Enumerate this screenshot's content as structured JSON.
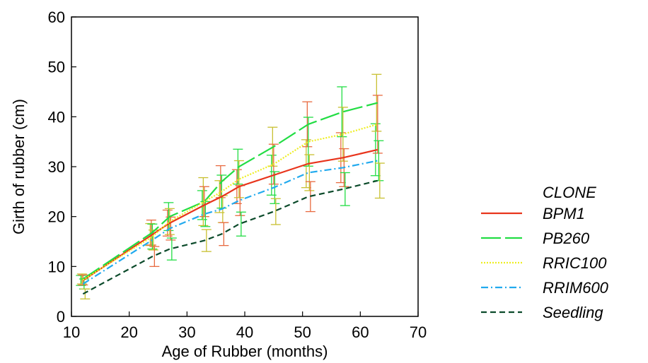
{
  "chart_data": {
    "type": "line",
    "title": "",
    "xlabel": "Age of Rubber (months)",
    "ylabel": "Girth of rubber (cm)",
    "xlim": [
      10,
      70
    ],
    "ylim": [
      0,
      60
    ],
    "xticks": [
      10,
      20,
      30,
      40,
      50,
      60,
      70
    ],
    "yticks": [
      0,
      10,
      20,
      30,
      40,
      50,
      60
    ],
    "grid": false,
    "error_bars": true,
    "legend": {
      "title": "CLONE",
      "placement": "right",
      "entries": [
        "BPM1",
        "PB260",
        "RRIC100",
        "RRIM600",
        "Seedling"
      ]
    },
    "series": [
      {
        "name": "BPM1",
        "color": "#e8341c",
        "style": "solid",
        "x": [
          12,
          24,
          27,
          33,
          36,
          39,
          45,
          51,
          57,
          63
        ],
        "y": [
          7.2,
          16.4,
          18.7,
          22.3,
          24.0,
          26.0,
          28.3,
          30.6,
          31.8,
          33.4
        ],
        "err": [
          1.0,
          2.2,
          2.6,
          2.9,
          3.2,
          3.4,
          4.0,
          4.8,
          5.0,
          5.2
        ]
      },
      {
        "name": "PB260",
        "color": "#22dd44",
        "style": "long-dash",
        "x": [
          12,
          24,
          27,
          33,
          36,
          39,
          45,
          51,
          57,
          63
        ],
        "y": [
          7.5,
          16.8,
          20.0,
          23.0,
          27.0,
          30.0,
          34.0,
          38.5,
          41.0,
          42.8
        ],
        "err": [
          1.0,
          2.5,
          2.8,
          4.8,
          3.2,
          3.5,
          3.9,
          4.5,
          5.0,
          5.7
        ]
      },
      {
        "name": "RRIC100",
        "color": "#eeee22",
        "style": "dotted",
        "x": [
          12,
          24,
          27,
          33,
          36,
          39,
          45,
          51,
          57,
          63
        ],
        "y": [
          7.3,
          16.0,
          19.0,
          23.0,
          25.0,
          27.5,
          30.5,
          35.0,
          36.5,
          38.5
        ],
        "err": [
          1.0,
          2.5,
          2.6,
          3.0,
          3.3,
          3.7,
          4.0,
          4.9,
          5.4,
          5.8
        ]
      },
      {
        "name": "RRIM600",
        "color": "#22aaee",
        "style": "dash-dot",
        "x": [
          12,
          24,
          27,
          33,
          36,
          39,
          45,
          51,
          57,
          63
        ],
        "y": [
          6.5,
          15.3,
          17.6,
          20.5,
          21.5,
          23.2,
          25.8,
          28.8,
          29.8,
          31.2
        ],
        "err": [
          1.0,
          2.0,
          2.3,
          2.5,
          2.7,
          3.0,
          3.2,
          3.6,
          3.8,
          4.0
        ]
      },
      {
        "name": "Seedling",
        "color": "#0b4a2a",
        "style": "dashed",
        "x": [
          12,
          24,
          27,
          33,
          36,
          39,
          45,
          51,
          57,
          63
        ],
        "y": [
          4.5,
          12.0,
          13.5,
          15.2,
          16.5,
          18.5,
          21.0,
          24.0,
          25.5,
          27.2
        ],
        "err": [
          1.0,
          2.0,
          2.2,
          2.2,
          2.3,
          2.4,
          2.6,
          3.0,
          3.3,
          3.5
        ]
      }
    ],
    "error_bar_colors": [
      "#22dd44",
      "#c8c030",
      "#e86a40"
    ]
  }
}
